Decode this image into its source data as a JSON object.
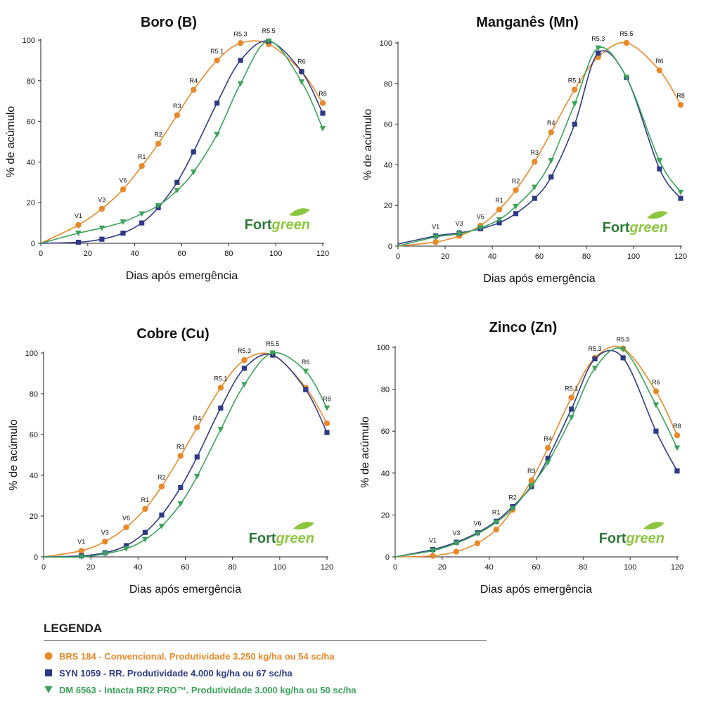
{
  "colors": {
    "BRS": "#e8892a",
    "SYN": "#2e3a87",
    "DM": "#3aa35a"
  },
  "axis": {
    "xlabel": "Dias após emergência",
    "ylabel": "% de acúmulo",
    "xticks": [
      "0",
      "20",
      "40",
      "60",
      "80",
      "100",
      "120"
    ],
    "yticks": [
      "0",
      "20",
      "40",
      "60",
      "80",
      "100"
    ]
  },
  "logo": {
    "part1": "Fort",
    "part2": "green"
  },
  "legend": {
    "title": "LEGENDA",
    "items": [
      {
        "key": "BRS",
        "marker": "circle",
        "label": "BRS 184 - Convencional. Produtividade 3.250 kg/ha ou 54 sc/ha"
      },
      {
        "key": "SYN",
        "marker": "square",
        "label": "SYN 1059 - RR. Produtividade 4.000 kg/ha ou 67 sc/ha"
      },
      {
        "key": "DM",
        "marker": "triangle",
        "label": "DM 6563 - Intacta RR2 PRO™. Produtividade 3.000 kg/ha ou 50 sc/ha"
      }
    ]
  },
  "chart_data": [
    {
      "type": "line",
      "title": "Boro (B)",
      "xlim": [
        0,
        120
      ],
      "ylim": [
        0,
        100
      ],
      "x": [
        0,
        16,
        26,
        35,
        43,
        50,
        58,
        65,
        75,
        85,
        97,
        111,
        120
      ],
      "stages": [
        {
          "label": "V1",
          "x": 16,
          "y": 9
        },
        {
          "label": "V3",
          "x": 26,
          "y": 17
        },
        {
          "label": "V6",
          "x": 35,
          "y": 26.5
        },
        {
          "label": "R1",
          "x": 43,
          "y": 38
        },
        {
          "label": "R2",
          "x": 50,
          "y": 49
        },
        {
          "label": "R3",
          "x": 58,
          "y": 63
        },
        {
          "label": "R4",
          "x": 65,
          "y": 75.5
        },
        {
          "label": "R5.1",
          "x": 75,
          "y": 90
        },
        {
          "label": "R5.3",
          "x": 85,
          "y": 98.5
        },
        {
          "label": "R5.5",
          "x": 97,
          "y": 100
        },
        {
          "label": "R6",
          "x": 111,
          "y": 85
        },
        {
          "label": "R8",
          "x": 120,
          "y": 69
        }
      ],
      "series": [
        {
          "name": "BRS 184",
          "key": "BRS",
          "marker": "circle",
          "values": [
            0,
            9,
            17,
            26.5,
            38,
            49,
            63,
            75.5,
            90,
            98.5,
            98,
            84.5,
            69
          ]
        },
        {
          "name": "SYN 1059",
          "key": "SYN",
          "marker": "square",
          "values": [
            0,
            0.5,
            2,
            5,
            10,
            17.5,
            30,
            45,
            69,
            90,
            99.5,
            84.5,
            64
          ]
        },
        {
          "name": "DM 6563",
          "key": "DM",
          "marker": "triangle",
          "values": [
            0,
            5,
            7.5,
            10.5,
            14.5,
            18.5,
            26,
            35,
            53.5,
            78.5,
            99.5,
            79.5,
            56.5
          ]
        }
      ]
    },
    {
      "type": "line",
      "title": "Manganês (Mn)",
      "xlim": [
        0,
        120
      ],
      "ylim": [
        0,
        100
      ],
      "x": [
        0,
        16,
        26,
        35,
        43,
        50,
        58,
        65,
        75,
        85,
        97,
        111,
        120
      ],
      "stages": [
        {
          "label": "V1",
          "x": 16,
          "y": 5
        },
        {
          "label": "V3",
          "x": 26,
          "y": 6.5
        },
        {
          "label": "V6",
          "x": 35,
          "y": 10
        },
        {
          "label": "R1",
          "x": 43,
          "y": 18
        },
        {
          "label": "R2",
          "x": 50,
          "y": 27.5
        },
        {
          "label": "R3",
          "x": 58,
          "y": 41.5
        },
        {
          "label": "R4",
          "x": 65,
          "y": 56
        },
        {
          "label": "R5.1",
          "x": 75,
          "y": 77
        },
        {
          "label": "R5.3",
          "x": 85,
          "y": 97.5
        },
        {
          "label": "R5.5",
          "x": 97,
          "y": 100
        },
        {
          "label": "R6",
          "x": 111,
          "y": 86.5
        },
        {
          "label": "R8",
          "x": 120,
          "y": 69.5
        }
      ],
      "series": [
        {
          "name": "BRS 184",
          "key": "BRS",
          "marker": "circle",
          "values": [
            0,
            2,
            5,
            10,
            18,
            27.5,
            41.5,
            56,
            77,
            93,
            100,
            86.5,
            69.5
          ]
        },
        {
          "name": "SYN 1059",
          "key": "SYN",
          "marker": "square",
          "values": [
            1,
            5,
            6.5,
            8.5,
            11.5,
            16,
            23.5,
            34,
            60,
            95,
            83,
            38,
            23.5
          ]
        },
        {
          "name": "DM 6563",
          "key": "DM",
          "marker": "triangle",
          "values": [
            0,
            4.5,
            6,
            9,
            13,
            19.5,
            29,
            42,
            70,
            97.5,
            83,
            42,
            26.5
          ]
        }
      ]
    },
    {
      "type": "line",
      "title": "Cobre (Cu)",
      "xlim": [
        0,
        120
      ],
      "ylim": [
        0,
        100
      ],
      "x": [
        0,
        16,
        26,
        35,
        43,
        50,
        58,
        65,
        75,
        85,
        97,
        111,
        120
      ],
      "stages": [
        {
          "label": "V1",
          "x": 16,
          "y": 3
        },
        {
          "label": "V3",
          "x": 26,
          "y": 7.5
        },
        {
          "label": "V6",
          "x": 35,
          "y": 14.5
        },
        {
          "label": "R1",
          "x": 43,
          "y": 23.5
        },
        {
          "label": "R2",
          "x": 50,
          "y": 34.5
        },
        {
          "label": "R3",
          "x": 58,
          "y": 49.5
        },
        {
          "label": "R4",
          "x": 65,
          "y": 63.5
        },
        {
          "label": "R5.1",
          "x": 75,
          "y": 83
        },
        {
          "label": "R5.3",
          "x": 85,
          "y": 96.5
        },
        {
          "label": "R5.5",
          "x": 97,
          "y": 100
        },
        {
          "label": "R6",
          "x": 111,
          "y": 91
        },
        {
          "label": "R8",
          "x": 120,
          "y": 73
        }
      ],
      "series": [
        {
          "name": "BRS 184",
          "key": "BRS",
          "marker": "circle",
          "values": [
            0,
            3,
            7.5,
            14.5,
            23.5,
            34.5,
            49.5,
            63.5,
            83,
            96.5,
            99,
            83,
            65.5
          ]
        },
        {
          "name": "SYN 1059",
          "key": "SYN",
          "marker": "square",
          "values": [
            0,
            0.5,
            2,
            5.5,
            12,
            20.5,
            34,
            49,
            73,
            92.5,
            99,
            82,
            61
          ]
        },
        {
          "name": "DM 6563",
          "key": "DM",
          "marker": "triangle",
          "values": [
            0,
            0,
            1.5,
            4,
            8.5,
            15,
            26,
            39.5,
            62.5,
            84.5,
            100,
            91,
            73
          ]
        }
      ]
    },
    {
      "type": "line",
      "title": "Zinco (Zn)",
      "xlim": [
        0,
        120
      ],
      "ylim": [
        0,
        100
      ],
      "x": [
        0,
        16,
        26,
        35,
        43,
        50,
        58,
        65,
        75,
        85,
        97,
        111,
        120
      ],
      "stages": [
        {
          "label": "V1",
          "x": 16,
          "y": 3.5
        },
        {
          "label": "V3",
          "x": 26,
          "y": 7
        },
        {
          "label": "V6",
          "x": 35,
          "y": 11.5
        },
        {
          "label": "R1",
          "x": 43,
          "y": 17
        },
        {
          "label": "R2",
          "x": 50,
          "y": 24
        },
        {
          "label": "R3",
          "x": 58,
          "y": 36.5
        },
        {
          "label": "R4",
          "x": 65,
          "y": 52
        },
        {
          "label": "R5.1",
          "x": 75,
          "y": 76
        },
        {
          "label": "R5.3",
          "x": 85,
          "y": 95
        },
        {
          "label": "R5.5",
          "x": 97,
          "y": 99.5
        },
        {
          "label": "R6",
          "x": 111,
          "y": 79
        },
        {
          "label": "R8",
          "x": 120,
          "y": 58
        }
      ],
      "series": [
        {
          "name": "BRS 184",
          "key": "BRS",
          "marker": "circle",
          "values": [
            0,
            0.5,
            2.5,
            6.5,
            13,
            22.5,
            36.5,
            52,
            76,
            95,
            99.5,
            79,
            58
          ]
        },
        {
          "name": "SYN 1059",
          "key": "SYN",
          "marker": "square",
          "values": [
            0,
            3.5,
            7,
            11.5,
            17,
            24,
            33.5,
            47,
            70.5,
            94.5,
            95,
            60,
            41
          ]
        },
        {
          "name": "DM 6563",
          "key": "DM",
          "marker": "triangle",
          "values": [
            0,
            3,
            6.5,
            11,
            16.5,
            23,
            34,
            45,
            66.5,
            90,
            99,
            72.5,
            52
          ]
        }
      ]
    }
  ]
}
